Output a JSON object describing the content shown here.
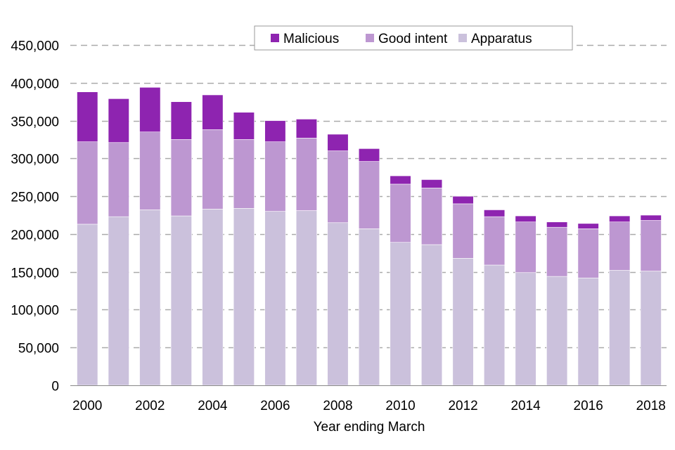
{
  "chart_data": {
    "type": "stacked-bar",
    "xlabel": "Year ending March",
    "ylabel": "",
    "ylim": [
      0,
      450000
    ],
    "yticks": [
      0,
      50000,
      100000,
      150000,
      200000,
      250000,
      300000,
      350000,
      400000,
      450000
    ],
    "ytick_labels": [
      "0",
      "50,000",
      "100,000",
      "150,000",
      "200,000",
      "250,000",
      "300,000",
      "350,000",
      "400,000",
      "450,000"
    ],
    "grid": "horizontal dashed",
    "legend_position": "top",
    "categories": [
      "2000",
      "2001",
      "2002",
      "2003",
      "2004",
      "2005",
      "2006",
      "2007",
      "2008",
      "2009",
      "2010",
      "2011",
      "2012",
      "2013",
      "2014",
      "2015",
      "2016",
      "2017",
      "2018"
    ],
    "xtick_labels": [
      "2000",
      "",
      "2002",
      "",
      "2004",
      "",
      "2006",
      "",
      "2008",
      "",
      "2010",
      "",
      "2012",
      "",
      "2014",
      "",
      "2016",
      "",
      "2018"
    ],
    "series": [
      {
        "name": "Apparatus",
        "color": "#cbc1dc",
        "values": [
          213000,
          223000,
          232000,
          224000,
          233000,
          234000,
          230000,
          231000,
          215000,
          207000,
          189000,
          186000,
          168000,
          159000,
          149000,
          144000,
          142000,
          152000,
          151000
        ]
      },
      {
        "name": "Good intent",
        "color": "#bd97d1",
        "values": [
          109000,
          98000,
          103000,
          101000,
          105000,
          91000,
          92000,
          96000,
          95000,
          89000,
          77000,
          75000,
          72000,
          64000,
          67000,
          65000,
          65000,
          64000,
          67000
        ]
      },
      {
        "name": "Malicious",
        "color": "#8e24b0",
        "values": [
          66000,
          58000,
          59000,
          50000,
          46000,
          36000,
          28000,
          25000,
          22000,
          17000,
          11000,
          11000,
          10000,
          9000,
          8000,
          7000,
          7000,
          8000,
          7000
        ]
      }
    ],
    "legend_order": [
      "Malicious",
      "Good intent",
      "Apparatus"
    ]
  }
}
